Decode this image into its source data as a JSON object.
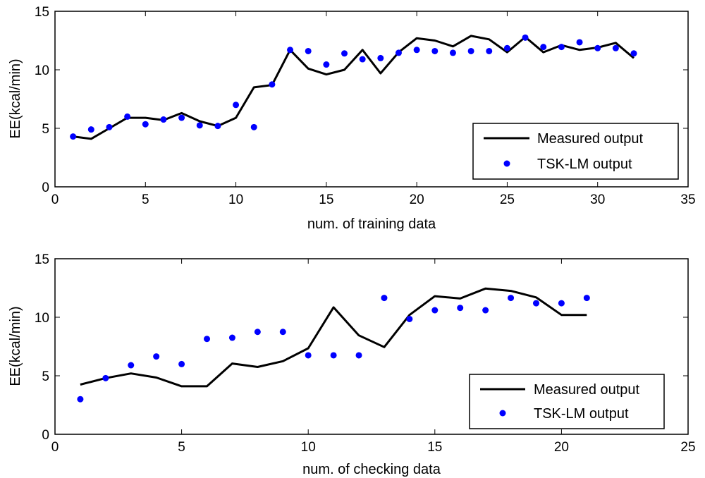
{
  "chart_data": [
    {
      "type": "line",
      "title": "",
      "xlabel": "num. of training data",
      "ylabel": "EE(kcal/min)",
      "xlim": [
        0,
        35
      ],
      "ylim": [
        0,
        15
      ],
      "xticks": [
        0,
        5,
        10,
        15,
        20,
        25,
        30,
        35
      ],
      "yticks": [
        0,
        5,
        10,
        15
      ],
      "grid": false,
      "legend_position": "bottom-right",
      "x": [
        1,
        2,
        3,
        4,
        5,
        6,
        7,
        8,
        9,
        10,
        11,
        12,
        13,
        14,
        15,
        16,
        17,
        18,
        19,
        20,
        21,
        22,
        23,
        24,
        25,
        26,
        27,
        28,
        29,
        30,
        31,
        32
      ],
      "series": [
        {
          "name": "Measured output",
          "style": "line",
          "color": "#000000",
          "values": [
            4.3,
            4.1,
            5.0,
            5.9,
            5.9,
            5.7,
            6.3,
            5.6,
            5.2,
            5.9,
            8.5,
            8.7,
            11.7,
            10.1,
            9.6,
            10.0,
            11.7,
            9.7,
            11.5,
            12.7,
            12.5,
            12.0,
            12.9,
            12.6,
            11.5,
            12.8,
            11.5,
            12.1,
            11.7,
            11.9,
            12.3,
            11.0
          ]
        },
        {
          "name": "TSK-LM output",
          "style": "scatter",
          "color": "#0000ff",
          "values": [
            4.3,
            4.9,
            5.1,
            6.0,
            5.35,
            5.75,
            5.9,
            5.25,
            5.2,
            7.0,
            5.1,
            8.75,
            11.7,
            11.6,
            10.45,
            11.4,
            10.9,
            11.0,
            11.45,
            11.7,
            11.6,
            11.45,
            11.6,
            11.6,
            11.85,
            12.75,
            11.95,
            11.95,
            12.35,
            11.85,
            11.85,
            11.4
          ]
        }
      ]
    },
    {
      "type": "line",
      "title": "",
      "xlabel": "num. of checking data",
      "ylabel": "EE(kcal/min)",
      "xlim": [
        0,
        25
      ],
      "ylim": [
        0,
        15
      ],
      "xticks": [
        0,
        5,
        10,
        15,
        20,
        25
      ],
      "yticks": [
        0,
        5,
        10,
        15
      ],
      "grid": false,
      "legend_position": "bottom-right",
      "x": [
        1,
        2,
        3,
        4,
        5,
        6,
        7,
        8,
        9,
        10,
        11,
        12,
        13,
        14,
        15,
        16,
        17,
        18,
        19,
        20,
        21
      ],
      "series": [
        {
          "name": "Measured output",
          "style": "line",
          "color": "#000000",
          "values": [
            4.25,
            4.8,
            5.2,
            4.85,
            4.1,
            4.1,
            6.05,
            5.75,
            6.25,
            7.35,
            10.85,
            8.45,
            7.45,
            10.2,
            11.8,
            11.6,
            12.45,
            12.25,
            11.7,
            10.2,
            10.2
          ]
        },
        {
          "name": "TSK-LM output",
          "style": "scatter",
          "color": "#0000ff",
          "values": [
            3.0,
            4.8,
            5.9,
            6.65,
            6.0,
            8.15,
            8.25,
            8.75,
            8.75,
            6.75,
            6.75,
            6.75,
            11.65,
            9.85,
            10.6,
            10.8,
            10.6,
            11.65,
            11.2,
            11.2,
            11.65
          ]
        }
      ]
    }
  ]
}
